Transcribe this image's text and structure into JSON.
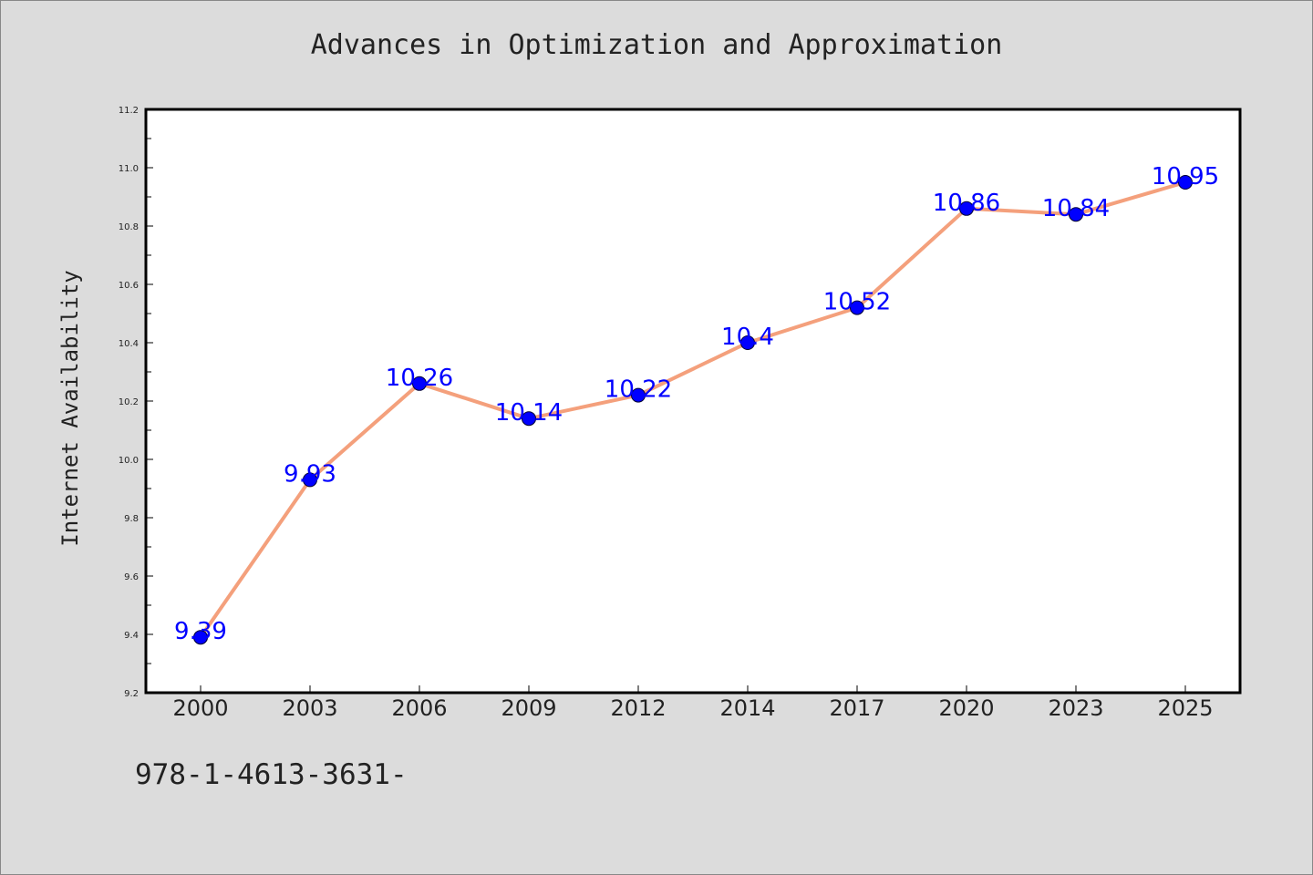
{
  "chart_data": {
    "type": "line",
    "title": "Advances in Optimization and Approximation",
    "xlabel": "",
    "ylabel": "Internet Availability",
    "categories": [
      "2000",
      "2003",
      "2006",
      "2009",
      "2012",
      "2014",
      "2017",
      "2020",
      "2023",
      "2025"
    ],
    "series": [
      {
        "values": [
          9.39,
          9.93,
          10.26,
          10.14,
          10.22,
          10.4,
          10.52,
          10.86,
          10.84,
          10.95
        ],
        "data_labels": [
          "9.39",
          "9.93",
          "10.26",
          "10.14",
          "10.22",
          "10.4",
          "10.52",
          "10.86",
          "10.84",
          "10.95"
        ],
        "line_color": "#f4a07c",
        "marker_color": "#0000ff"
      }
    ],
    "ylim": [
      9.2,
      11.2
    ],
    "yticks": [
      "9.2",
      "9.4",
      "9.6",
      "9.8",
      "10.0",
      "10.2",
      "10.4",
      "10.6",
      "10.8",
      "11.0",
      "11.2"
    ],
    "grid": false,
    "legend": "none"
  },
  "footer": {
    "text": "978-1-4613-3631-"
  },
  "colors": {
    "background": "#dcdcdc",
    "plot_background": "#ffffff",
    "axis": "#000000",
    "line": "#f4a07c",
    "marker": "#0000ff",
    "data_label": "#0000ff"
  }
}
